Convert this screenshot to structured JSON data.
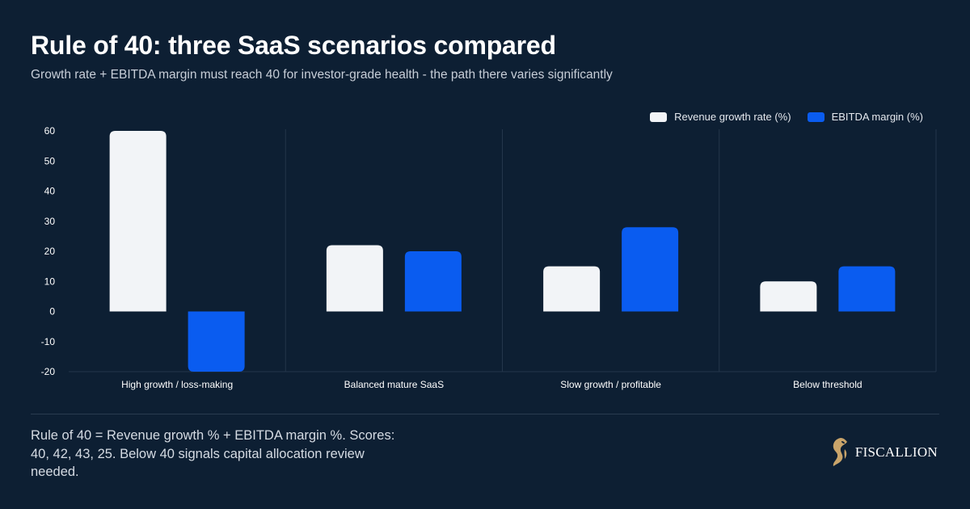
{
  "title": "Rule of 40: three SaaS scenarios compared",
  "subtitle": "Growth rate + EBITDA margin must reach 40 for investor-grade health - the path there varies significantly",
  "footnote": "Rule of 40 = Revenue growth % + EBITDA margin %. Scores: 40, 42, 43, 25. Below 40 signals capital allocation review needed.",
  "brand": {
    "name": "FISCALLION",
    "logo_icon": "lion-head-icon",
    "logo_color": "#c9a46a"
  },
  "colors": {
    "background": "#0d1f33",
    "series_1": "#f2f4f7",
    "series_2": "#0a5cf0",
    "grid": "#24364b"
  },
  "chart_data": {
    "type": "bar",
    "categories": [
      "High growth / loss-making",
      "Balanced mature SaaS",
      "Slow growth / profitable",
      "Below threshold"
    ],
    "series": [
      {
        "name": "Revenue growth rate (%)",
        "values": [
          60,
          22,
          15,
          10
        ],
        "color": "#f2f4f7"
      },
      {
        "name": "EBITDA margin (%)",
        "values": [
          -20,
          20,
          28,
          15
        ],
        "color": "#0a5cf0"
      }
    ],
    "yticks": [
      "60",
      "50",
      "40",
      "30",
      "20",
      "10",
      "0",
      "-10",
      "-20"
    ],
    "ylim": [
      -20,
      60
    ],
    "grid": "vertical separators between categories",
    "legend_position": "top-right"
  }
}
